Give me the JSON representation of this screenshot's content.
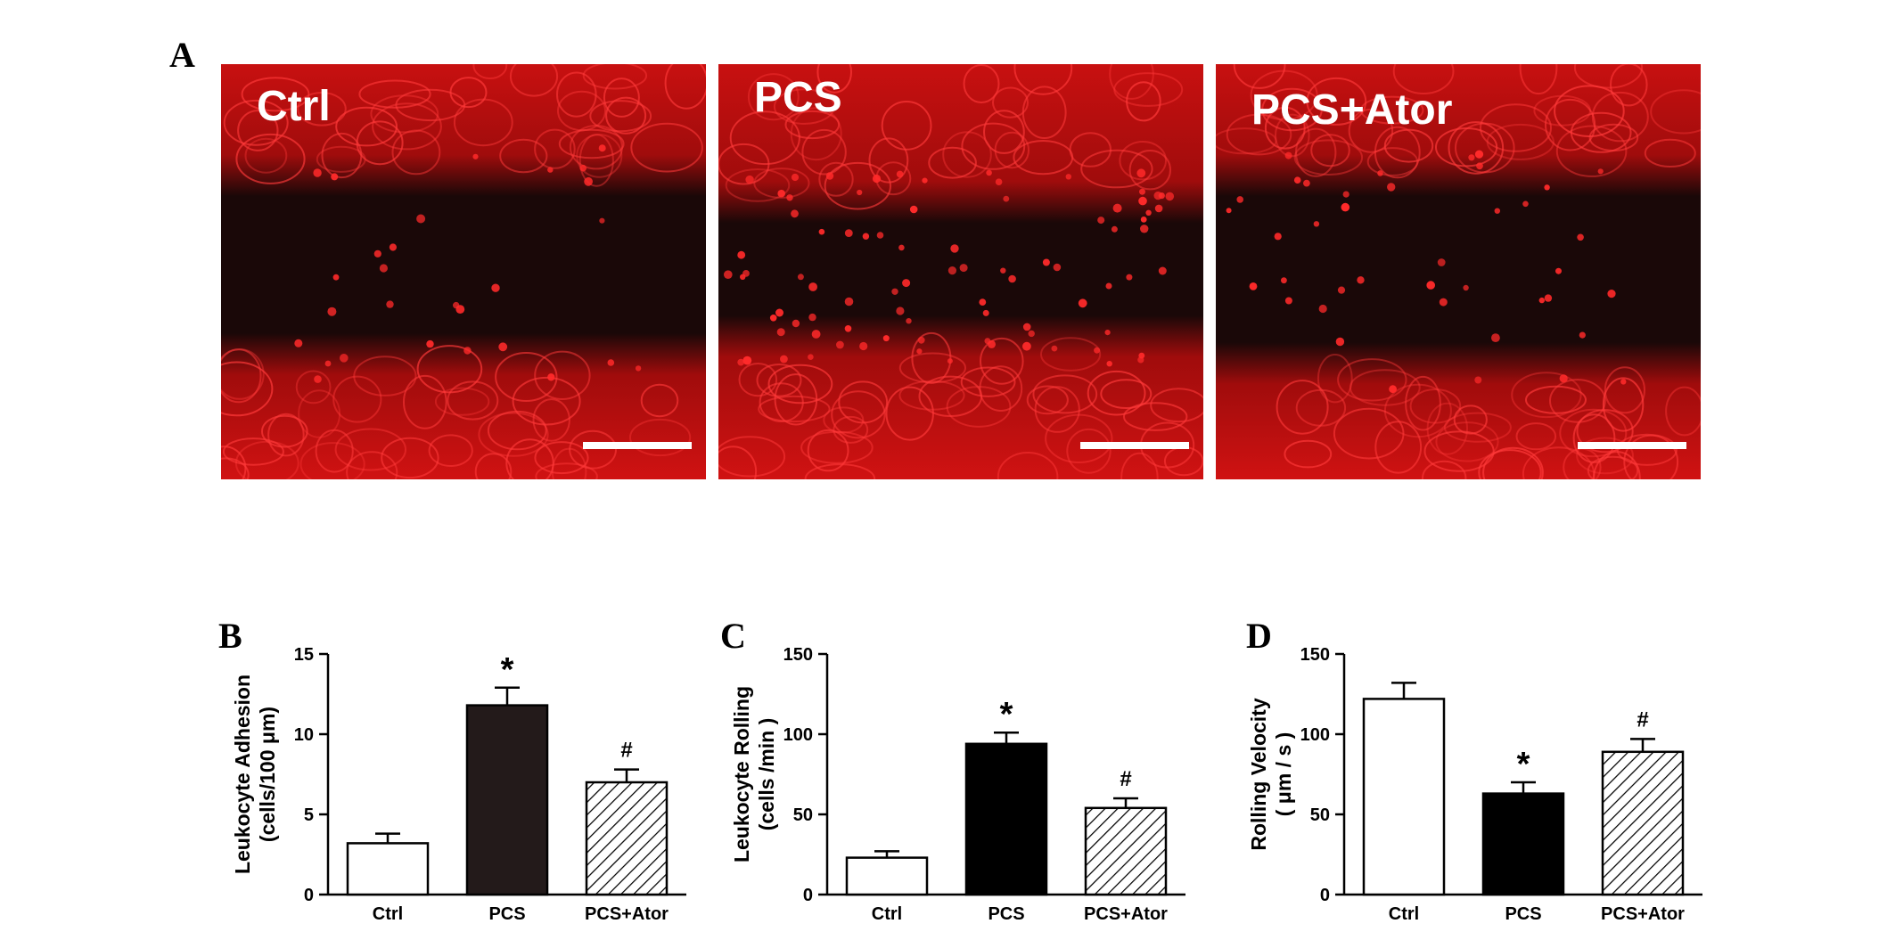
{
  "panels": {
    "A": "A",
    "B": "B",
    "C": "C",
    "D": "D"
  },
  "micrographs": [
    {
      "label": "Ctrl"
    },
    {
      "label": "PCS"
    },
    {
      "label": "PCS+Ator"
    }
  ],
  "chart_data": [
    {
      "type": "bar",
      "ylabel_line1": "Leukocyte Adhesion",
      "ylabel_line2": "(cells/100 μm)",
      "categories": [
        "Ctrl",
        "PCS",
        "PCS+Ator"
      ],
      "values": [
        3.2,
        11.8,
        7.0
      ],
      "errors": [
        0.6,
        1.1,
        0.8
      ],
      "annotations": [
        "",
        "*",
        "#"
      ],
      "ylim": [
        0,
        15
      ],
      "yticks": [
        0,
        5,
        10,
        15
      ],
      "fills": [
        "white",
        "dark",
        "hatch"
      ]
    },
    {
      "type": "bar",
      "ylabel_line1": "Leukocyte Rolling",
      "ylabel_line2": "(cells /min )",
      "categories": [
        "Ctrl",
        "PCS",
        "PCS+Ator"
      ],
      "values": [
        23,
        94,
        54
      ],
      "errors": [
        4,
        7,
        6
      ],
      "annotations": [
        "",
        "*",
        "#"
      ],
      "ylim": [
        0,
        150
      ],
      "yticks": [
        0,
        50,
        100,
        150
      ],
      "fills": [
        "white",
        "black",
        "hatch"
      ]
    },
    {
      "type": "bar",
      "ylabel_line1": "Rolling Velocity",
      "ylabel_line2": "( μm / s )",
      "categories": [
        "Ctrl",
        "PCS",
        "PCS+Ator"
      ],
      "values": [
        122,
        63,
        89
      ],
      "errors": [
        10,
        7,
        8
      ],
      "annotations": [
        "",
        "*",
        "#"
      ],
      "ylim": [
        0,
        150
      ],
      "yticks": [
        0,
        50,
        100,
        150
      ],
      "fills": [
        "white",
        "black",
        "hatch"
      ]
    }
  ],
  "colors": {
    "tissue": "#e01010",
    "vessel": "#1a0808",
    "cell": "#ff2a2a",
    "dark_bar": "#231a1a",
    "black_bar": "#000000"
  }
}
